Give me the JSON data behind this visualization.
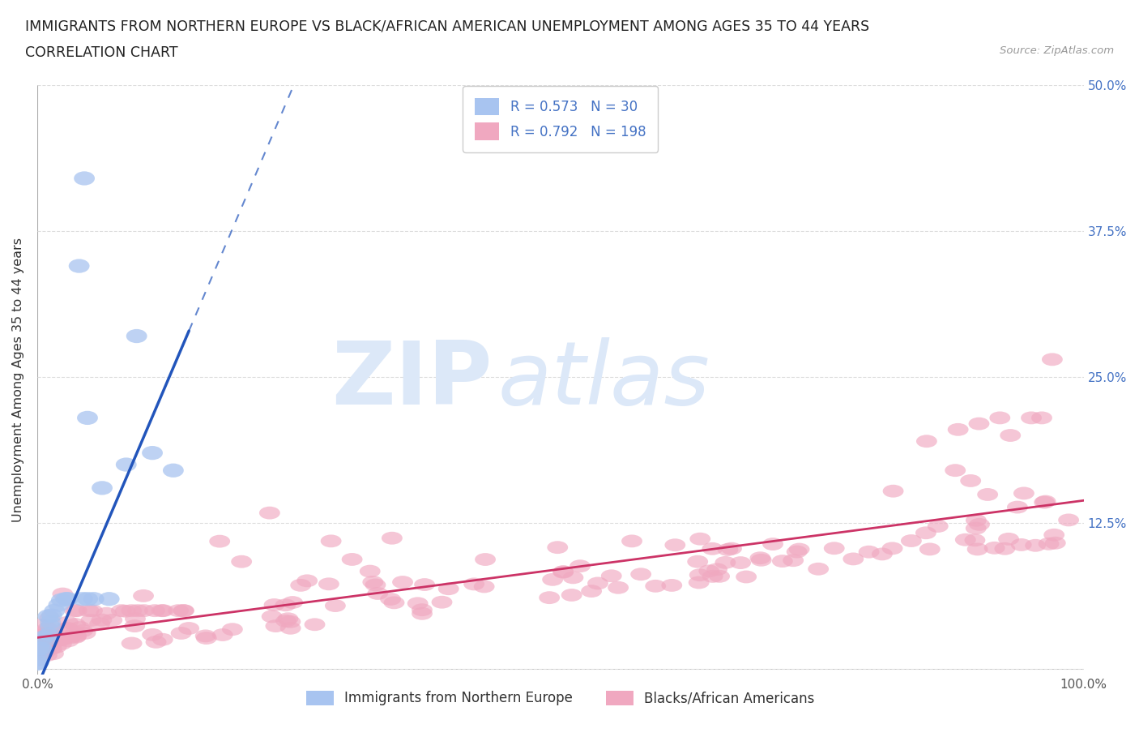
{
  "title_line1": "IMMIGRANTS FROM NORTHERN EUROPE VS BLACK/AFRICAN AMERICAN UNEMPLOYMENT AMONG AGES 35 TO 44 YEARS",
  "title_line2": "CORRELATION CHART",
  "source": "Source: ZipAtlas.com",
  "ylabel": "Unemployment Among Ages 35 to 44 years",
  "xlim": [
    0,
    1.0
  ],
  "ylim": [
    -0.005,
    0.5
  ],
  "xticks": [
    0.0,
    0.1,
    0.2,
    0.3,
    0.4,
    0.5,
    0.6,
    0.7,
    0.8,
    0.9,
    1.0
  ],
  "xticklabels": [
    "0.0%",
    "",
    "",
    "",
    "",
    "",
    "",
    "",
    "",
    "",
    "100.0%"
  ],
  "ytick_positions": [
    0.0,
    0.125,
    0.25,
    0.375,
    0.5
  ],
  "yticklabels_right": [
    "",
    "12.5%",
    "25.0%",
    "37.5%",
    "50.0%"
  ],
  "legend_top_labels": [
    "R = 0.573   N = 30",
    "R = 0.792   N = 198"
  ],
  "legend_bottom_labels": [
    "Immigrants from Northern Europe",
    "Blacks/African Americans"
  ],
  "blue_scatter_color": "#a8c4f0",
  "pink_scatter_color": "#f0a8c0",
  "blue_line_color": "#2255bb",
  "pink_line_color": "#cc3366",
  "watermark_zip": "ZIP",
  "watermark_atlas": "atlas",
  "watermark_color": "#dce8f8",
  "grid_color": "#dddddd",
  "background_color": "#ffffff",
  "right_tick_color": "#4472c4"
}
